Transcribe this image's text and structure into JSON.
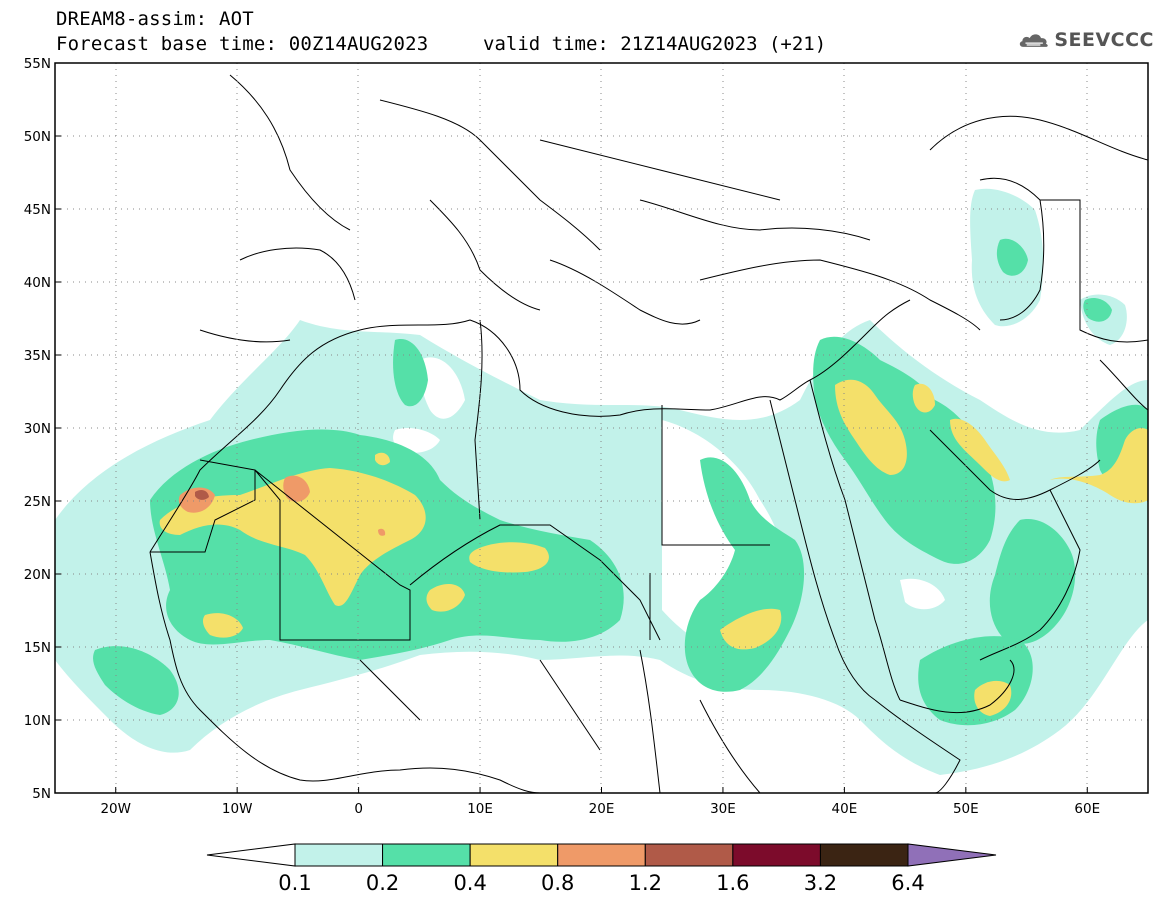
{
  "header": {
    "title_line1": "DREAM8-assim: AOT",
    "title_line2": "Forecast base time: 00Z14AUG2023",
    "valid_time": "valid time: 21Z14AUG2023 (+21)"
  },
  "logo": {
    "text": "SEEVCCC",
    "icon": "cloud-logo-icon",
    "color": "#555555"
  },
  "map": {
    "projection": "equirectangular",
    "lon_range": [
      -25,
      65
    ],
    "lat_range": [
      5,
      55
    ],
    "lat_labels": [
      "5N",
      "10N",
      "15N",
      "20N",
      "25N",
      "30N",
      "35N",
      "40N",
      "45N",
      "50N",
      "55N"
    ],
    "lon_labels": [
      "20W",
      "10W",
      "0",
      "10E",
      "20E",
      "30E",
      "40E",
      "50E",
      "60E"
    ],
    "grid": "dotted",
    "variable": "AOT"
  },
  "colorbar": {
    "levels": [
      "0.1",
      "0.2",
      "0.4",
      "0.8",
      "1.2",
      "1.6",
      "3.2",
      "6.4"
    ],
    "colors": [
      "#c2f2ea",
      "#55e0a8",
      "#f4e06a",
      "#ef9a68",
      "#b05a48",
      "#7c0b2b",
      "#3b2413",
      "#9070b8"
    ],
    "under_color": "#ffffff",
    "over_color": "#9070b8"
  }
}
